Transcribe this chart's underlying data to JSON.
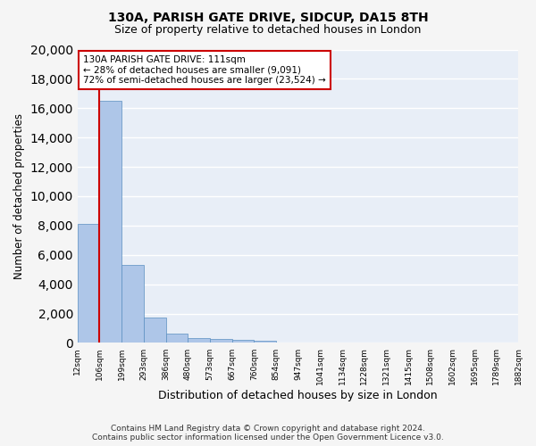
{
  "title1": "130A, PARISH GATE DRIVE, SIDCUP, DA15 8TH",
  "title2": "Size of property relative to detached houses in London",
  "xlabel": "Distribution of detached houses by size in London",
  "ylabel": "Number of detached properties",
  "bar_values": [
    8100,
    16500,
    5300,
    1750,
    650,
    350,
    270,
    200,
    150,
    0,
    0,
    0,
    0,
    0,
    0,
    0,
    0,
    0,
    0,
    0
  ],
  "bin_labels": [
    "12sqm",
    "106sqm",
    "199sqm",
    "293sqm",
    "386sqm",
    "480sqm",
    "573sqm",
    "667sqm",
    "760sqm",
    "854sqm",
    "947sqm",
    "1041sqm",
    "1134sqm",
    "1228sqm",
    "1321sqm",
    "1415sqm",
    "1508sqm",
    "1602sqm",
    "1695sqm",
    "1789sqm",
    "1882sqm"
  ],
  "bar_color": "#aec6e8",
  "bar_edge_color": "#5a8fc0",
  "annotation_box_color": "#cc0000",
  "annotation_text_line1": "130A PARISH GATE DRIVE: 111sqm",
  "annotation_text_line2": "← 28% of detached houses are smaller (9,091)",
  "annotation_text_line3": "72% of semi-detached houses are larger (23,524) →",
  "vline_x": 1.0,
  "vline_color": "#cc0000",
  "ylim": [
    0,
    20000
  ],
  "yticks": [
    0,
    2000,
    4000,
    6000,
    8000,
    10000,
    12000,
    14000,
    16000,
    18000,
    20000
  ],
  "footer_line1": "Contains HM Land Registry data © Crown copyright and database right 2024.",
  "footer_line2": "Contains public sector information licensed under the Open Government Licence v3.0.",
  "background_color": "#e8eef7",
  "grid_color": "#ffffff"
}
